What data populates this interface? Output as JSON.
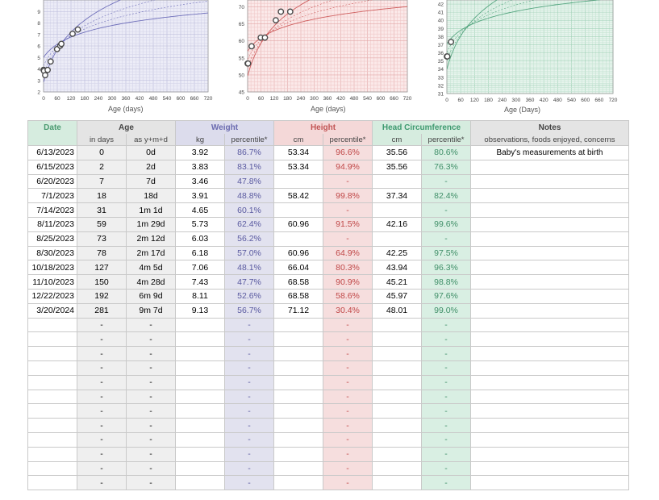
{
  "charts": {
    "weight": {
      "xlabel": "Age (days)",
      "color": "#5b5bb0",
      "x_ticks": [
        "0",
        "60",
        "120",
        "180",
        "240",
        "300",
        "360",
        "420",
        "480",
        "540",
        "600",
        "660",
        "720"
      ],
      "y_ticks": [
        "2",
        "3",
        "4",
        "5",
        "6",
        "7",
        "8",
        "9"
      ],
      "xlim": [
        0,
        720
      ],
      "ylim": [
        2,
        10
      ],
      "series": [
        {
          "x": [
            0,
            2,
            7,
            18,
            31,
            59,
            73,
            78,
            127,
            150
          ],
          "y": [
            3.92,
            3.83,
            3.46,
            3.91,
            4.65,
            5.73,
            6.03,
            6.18,
            7.06,
            7.43
          ]
        }
      ]
    },
    "height": {
      "xlabel": "Age (days)",
      "color": "#c84a4a",
      "x_ticks": [
        "0",
        "60",
        "120",
        "180",
        "240",
        "300",
        "360",
        "420",
        "480",
        "540",
        "600",
        "660",
        "720"
      ],
      "y_ticks": [
        "45",
        "50",
        "55",
        "60",
        "65",
        "70"
      ],
      "xlim": [
        0,
        720
      ],
      "ylim": [
        45,
        72
      ],
      "series": [
        {
          "x": [
            0,
            2,
            18,
            59,
            78,
            127,
            150,
            192
          ],
          "y": [
            53.34,
            53.34,
            58.42,
            60.96,
            60.96,
            66.04,
            68.58,
            68.58
          ]
        }
      ]
    },
    "head": {
      "xlabel": "Age (Days)",
      "color": "#3f9a70",
      "x_ticks": [
        "0",
        "60",
        "120",
        "180",
        "240",
        "300",
        "360",
        "420",
        "480",
        "540",
        "600",
        "660",
        "720"
      ],
      "y_ticks": [
        "31",
        "32",
        "33",
        "34",
        "35",
        "36",
        "37",
        "38",
        "39",
        "40",
        "41",
        "42"
      ],
      "xlim": [
        0,
        720
      ],
      "ylim": [
        31,
        42.5
      ],
      "series": [
        {
          "x": [
            0,
            2,
            18
          ],
          "y": [
            35.56,
            35.56,
            37.34
          ]
        }
      ]
    }
  },
  "table": {
    "headers": {
      "date": "Date",
      "age": "Age",
      "weight": "Weight",
      "height": "Height",
      "head": "Head Circumference",
      "notes": "Notes"
    },
    "subheaders": {
      "age_days": "in days",
      "age_ymd": "as y+m+d",
      "weight_kg": "kg",
      "weight_pct": "percentile*",
      "height_cm": "cm",
      "height_pct": "percentile*",
      "head_cm": "cm",
      "head_pct": "percentile*",
      "notes": "observations, foods enjoyed, concerns"
    },
    "rows": [
      {
        "date": "6/13/2023",
        "days": "0",
        "ymd": "0d",
        "kg": "3.92",
        "wp": "86.7%",
        "cm": "53.34",
        "hp": "96.6%",
        "hc": "35.56",
        "cp": "80.6%",
        "note": "Baby's measurements at birth"
      },
      {
        "date": "6/15/2023",
        "days": "2",
        "ymd": "2d",
        "kg": "3.83",
        "wp": "83.1%",
        "cm": "53.34",
        "hp": "94.9%",
        "hc": "35.56",
        "cp": "76.3%",
        "note": ""
      },
      {
        "date": "6/20/2023",
        "days": "7",
        "ymd": "7d",
        "kg": "3.46",
        "wp": "47.8%",
        "cm": "",
        "hp": "-",
        "hc": "",
        "cp": "-",
        "note": ""
      },
      {
        "date": "7/1/2023",
        "days": "18",
        "ymd": "18d",
        "kg": "3.91",
        "wp": "48.8%",
        "cm": "58.42",
        "hp": "99.8%",
        "hc": "37.34",
        "cp": "82.4%",
        "note": ""
      },
      {
        "date": "7/14/2023",
        "days": "31",
        "ymd": "1m 1d",
        "kg": "4.65",
        "wp": "60.1%",
        "cm": "",
        "hp": "-",
        "hc": "",
        "cp": "-",
        "note": ""
      },
      {
        "date": "8/11/2023",
        "days": "59",
        "ymd": "1m 29d",
        "kg": "5.73",
        "wp": "62.4%",
        "cm": "60.96",
        "hp": "91.5%",
        "hc": "42.16",
        "cp": "99.6%",
        "note": ""
      },
      {
        "date": "8/25/2023",
        "days": "73",
        "ymd": "2m 12d",
        "kg": "6.03",
        "wp": "56.2%",
        "cm": "",
        "hp": "-",
        "hc": "",
        "cp": "-",
        "note": ""
      },
      {
        "date": "8/30/2023",
        "days": "78",
        "ymd": "2m 17d",
        "kg": "6.18",
        "wp": "57.0%",
        "cm": "60.96",
        "hp": "64.9%",
        "hc": "42.25",
        "cp": "97.5%",
        "note": ""
      },
      {
        "date": "10/18/2023",
        "days": "127",
        "ymd": "4m 5d",
        "kg": "7.06",
        "wp": "48.1%",
        "cm": "66.04",
        "hp": "80.3%",
        "hc": "43.94",
        "cp": "96.3%",
        "note": ""
      },
      {
        "date": "11/10/2023",
        "days": "150",
        "ymd": "4m 28d",
        "kg": "7.43",
        "wp": "47.7%",
        "cm": "68.58",
        "hp": "90.9%",
        "hc": "45.21",
        "cp": "98.8%",
        "note": ""
      },
      {
        "date": "12/22/2023",
        "days": "192",
        "ymd": "6m 9d",
        "kg": "8.11",
        "wp": "52.6%",
        "cm": "68.58",
        "hp": "58.6%",
        "hc": "45.97",
        "cp": "97.6%",
        "note": ""
      },
      {
        "date": "3/20/2024",
        "days": "281",
        "ymd": "9m 7d",
        "kg": "9.13",
        "wp": "56.7%",
        "cm": "71.12",
        "hp": "30.4%",
        "hc": "48.01",
        "cp": "99.0%",
        "note": ""
      },
      {
        "date": "",
        "days": "-",
        "ymd": "-",
        "kg": "",
        "wp": "-",
        "cm": "",
        "hp": "-",
        "hc": "",
        "cp": "-",
        "note": ""
      },
      {
        "date": "",
        "days": "-",
        "ymd": "-",
        "kg": "",
        "wp": "-",
        "cm": "",
        "hp": "-",
        "hc": "",
        "cp": "-",
        "note": ""
      },
      {
        "date": "",
        "days": "-",
        "ymd": "-",
        "kg": "",
        "wp": "-",
        "cm": "",
        "hp": "-",
        "hc": "",
        "cp": "-",
        "note": ""
      },
      {
        "date": "",
        "days": "-",
        "ymd": "-",
        "kg": "",
        "wp": "-",
        "cm": "",
        "hp": "-",
        "hc": "",
        "cp": "-",
        "note": ""
      },
      {
        "date": "",
        "days": "-",
        "ymd": "-",
        "kg": "",
        "wp": "-",
        "cm": "",
        "hp": "-",
        "hc": "",
        "cp": "-",
        "note": ""
      },
      {
        "date": "",
        "days": "-",
        "ymd": "-",
        "kg": "",
        "wp": "-",
        "cm": "",
        "hp": "-",
        "hc": "",
        "cp": "-",
        "note": ""
      },
      {
        "date": "",
        "days": "-",
        "ymd": "-",
        "kg": "",
        "wp": "-",
        "cm": "",
        "hp": "-",
        "hc": "",
        "cp": "-",
        "note": ""
      },
      {
        "date": "",
        "days": "-",
        "ymd": "-",
        "kg": "",
        "wp": "-",
        "cm": "",
        "hp": "-",
        "hc": "",
        "cp": "-",
        "note": ""
      },
      {
        "date": "",
        "days": "-",
        "ymd": "-",
        "kg": "",
        "wp": "-",
        "cm": "",
        "hp": "-",
        "hc": "",
        "cp": "-",
        "note": ""
      },
      {
        "date": "",
        "days": "-",
        "ymd": "-",
        "kg": "",
        "wp": "-",
        "cm": "",
        "hp": "-",
        "hc": "",
        "cp": "-",
        "note": ""
      },
      {
        "date": "",
        "days": "-",
        "ymd": "-",
        "kg": "",
        "wp": "-",
        "cm": "",
        "hp": "-",
        "hc": "",
        "cp": "-",
        "note": ""
      },
      {
        "date": "",
        "days": "-",
        "ymd": "-",
        "kg": "",
        "wp": "-",
        "cm": "",
        "hp": "-",
        "hc": "",
        "cp": "-",
        "note": ""
      }
    ]
  }
}
